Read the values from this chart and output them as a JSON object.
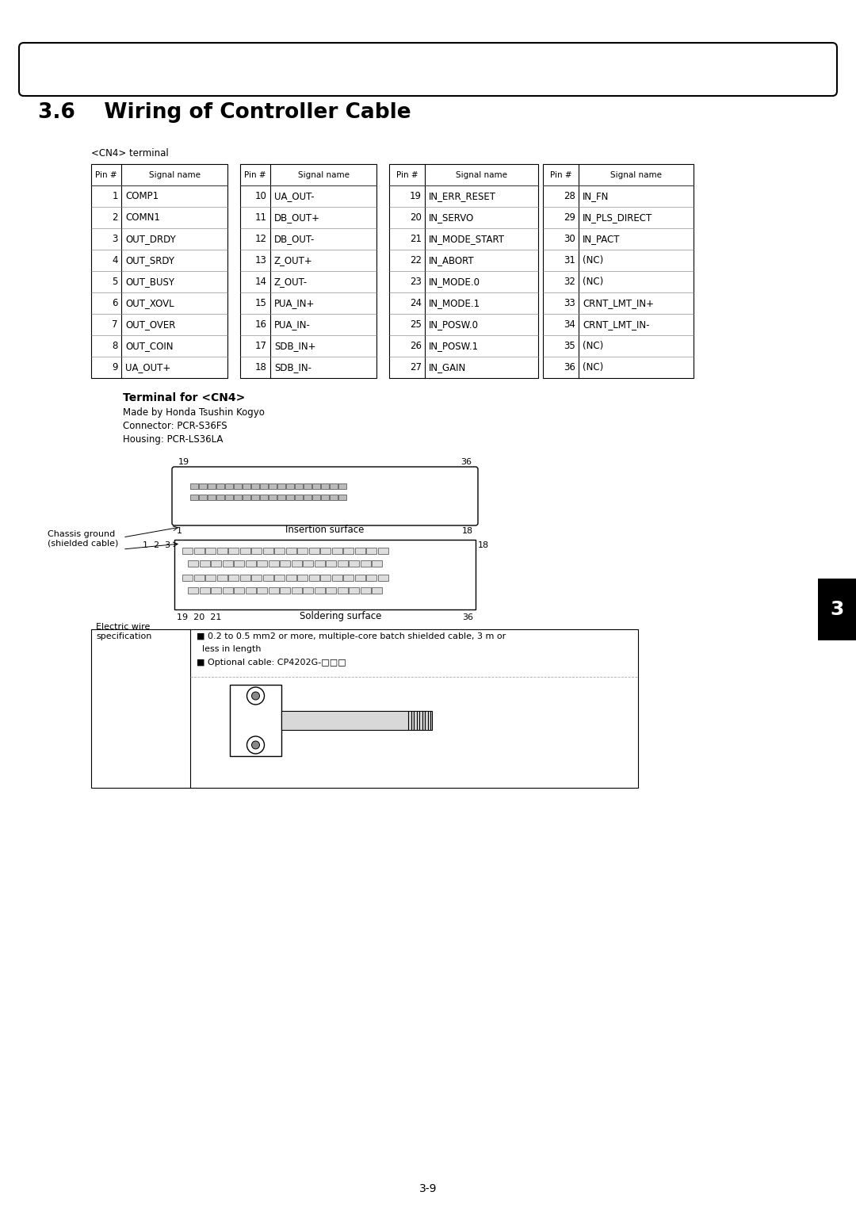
{
  "title": "3.6    Wiring of Controller Cable",
  "page_number": "3-9",
  "cn4_label": "<CN4> terminal",
  "table_col1": [
    [
      1,
      "COMP1"
    ],
    [
      2,
      "COMN1"
    ],
    [
      3,
      "OUT_DRDY"
    ],
    [
      4,
      "OUT_SRDY"
    ],
    [
      5,
      "OUT_BUSY"
    ],
    [
      6,
      "OUT_XOVL"
    ],
    [
      7,
      "OUT_OVER"
    ],
    [
      8,
      "OUT_COIN"
    ],
    [
      9,
      "UA_OUT+"
    ]
  ],
  "table_col2": [
    [
      10,
      "UA_OUT-"
    ],
    [
      11,
      "DB_OUT+"
    ],
    [
      12,
      "DB_OUT-"
    ],
    [
      13,
      "Z_OUT+"
    ],
    [
      14,
      "Z_OUT-"
    ],
    [
      15,
      "PUA_IN+"
    ],
    [
      16,
      "PUA_IN-"
    ],
    [
      17,
      "SDB_IN+"
    ],
    [
      18,
      "SDB_IN-"
    ]
  ],
  "table_col3": [
    [
      19,
      "IN_ERR_RESET"
    ],
    [
      20,
      "IN_SERVO"
    ],
    [
      21,
      "IN_MODE_START"
    ],
    [
      22,
      "IN_ABORT"
    ],
    [
      23,
      "IN_MODE.0"
    ],
    [
      24,
      "IN_MODE.1"
    ],
    [
      25,
      "IN_POSW.0"
    ],
    [
      26,
      "IN_POSW.1"
    ],
    [
      27,
      "IN_GAIN"
    ]
  ],
  "table_col4": [
    [
      28,
      "IN_FN"
    ],
    [
      29,
      "IN_PLS_DIRECT"
    ],
    [
      30,
      "IN_PACT"
    ],
    [
      31,
      "(NC)"
    ],
    [
      32,
      "(NC)"
    ],
    [
      33,
      "CRNT_LMT_IN+"
    ],
    [
      34,
      "CRNT_LMT_IN-"
    ],
    [
      35,
      "(NC)"
    ],
    [
      36,
      "(NC)"
    ]
  ],
  "terminal_title": "Terminal for <CN4>",
  "terminal_info": [
    "Made by Honda Tsushin Kogyo",
    "Connector: PCR-S36FS",
    "Housing: PCR-LS36LA"
  ],
  "electric_wire_label": "Electric wire\nspecification",
  "electric_wire_spec_line1": "■ 0.2 to 0.5 mm2 or more, multiple-core batch shielded cable, 3 m or",
  "electric_wire_spec_line2": "  less in length",
  "electric_wire_spec_line3": "■ Optional cable: CP4202G-□□□",
  "insertion_surface_label": "Insertion surface",
  "soldering_surface_label": "Soldering surface",
  "chassis_ground_label": "Chassis ground\n(shielded cable)",
  "bg_color": "#ffffff",
  "text_color": "#000000",
  "tab_num": "3"
}
